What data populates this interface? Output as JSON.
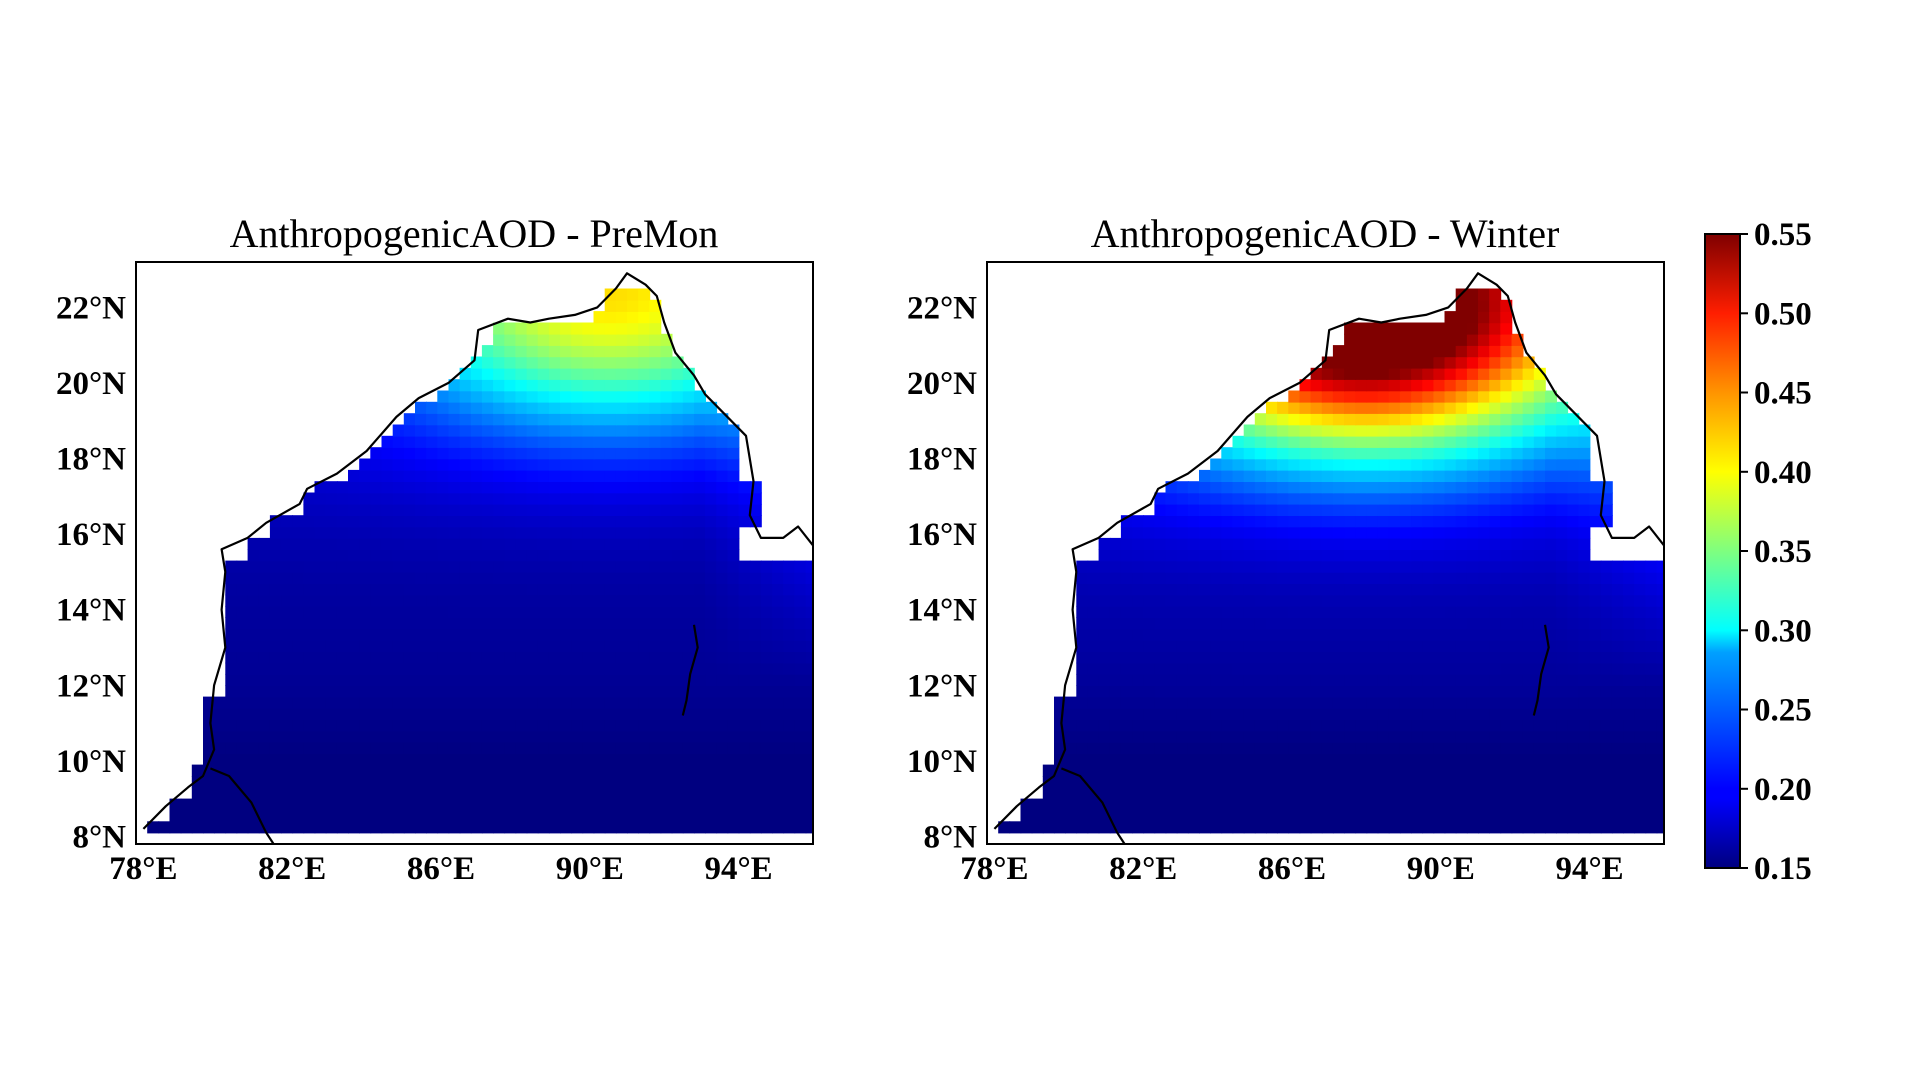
{
  "panels": [
    {
      "title": "AnthropogenicAOD - PreMon",
      "season": "PreMon",
      "field": {
        "north_coast_level": 0.36,
        "center_level": 0.18,
        "south_level": 0.155,
        "east_level": 0.22,
        "peak_location_lon": 90.5,
        "peak_location_lat": 22.0
      }
    },
    {
      "title": "AnthropogenicAOD - Winter",
      "season": "Winter",
      "field": {
        "north_coast_level": 0.55,
        "center_level": 0.2,
        "south_level": 0.155,
        "east_level": 0.24,
        "peak_location_lon": 88.0,
        "peak_location_lat": 21.5
      }
    }
  ],
  "axes": {
    "lon_range": [
      77.8,
      96.0
    ],
    "lat_range": [
      7.8,
      23.2
    ],
    "lon_ticks": [
      "78°E",
      "82°E",
      "86°E",
      "90°E",
      "94°E"
    ],
    "lon_tick_values": [
      78,
      82,
      86,
      90,
      94
    ],
    "lat_ticks": [
      "8°N",
      "10°N",
      "12°N",
      "14°N",
      "16°N",
      "18°N",
      "20°N",
      "22°N"
    ],
    "lat_tick_values": [
      8,
      10,
      12,
      14,
      16,
      18,
      20,
      22
    ]
  },
  "colorbar": {
    "colormap": "jet",
    "min": 0.15,
    "max": 0.55,
    "tick_labels": [
      "0.55",
      "0.50",
      "0.45",
      "0.40",
      "0.35",
      "0.30",
      "0.25",
      "0.20",
      "0.15"
    ],
    "tick_values": [
      0.55,
      0.5,
      0.45,
      0.4,
      0.35,
      0.3,
      0.25,
      0.2,
      0.15
    ]
  }
}
